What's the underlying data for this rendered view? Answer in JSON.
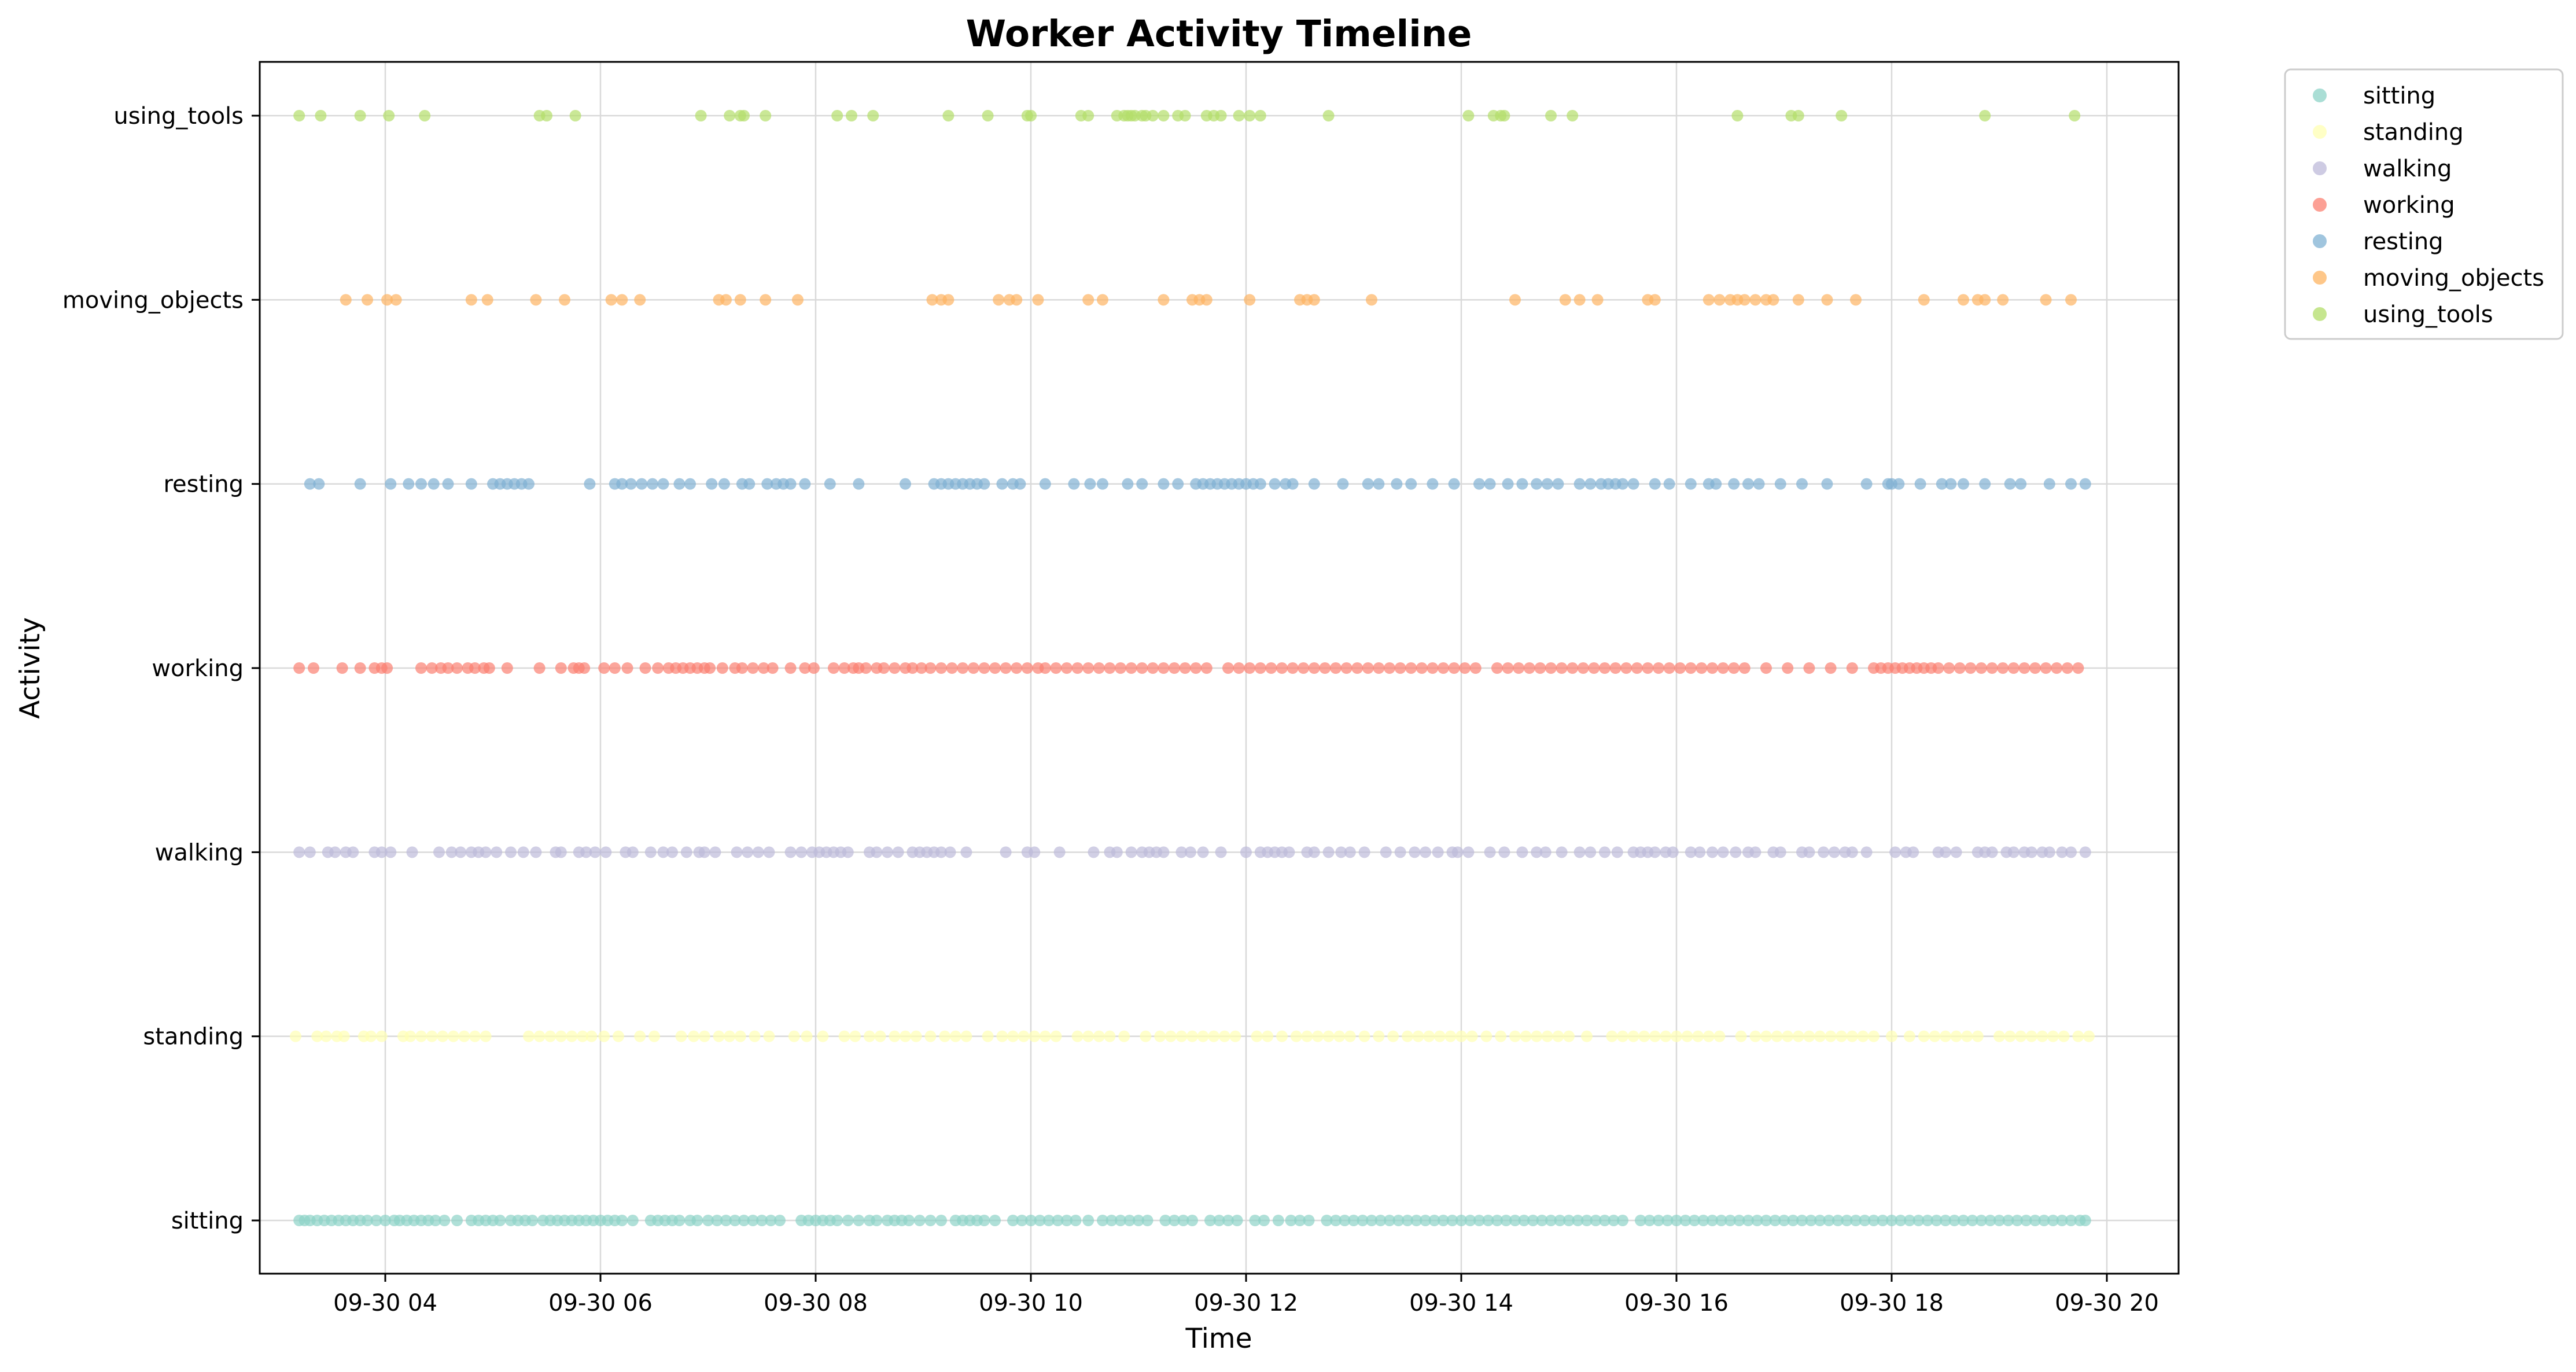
{
  "chart_data": {
    "type": "scatter",
    "title": "Worker Activity Timeline",
    "xlabel": "Time",
    "ylabel": "Activity",
    "x_unit": "datetime",
    "xlim": [
      "09-30 02:50",
      "09-30 20:40"
    ],
    "x_ticks": [
      "09-30 04:00",
      "09-30 06:00",
      "09-30 08:00",
      "09-30 10:00",
      "09-30 12:00",
      "09-30 14:00",
      "09-30 16:00",
      "09-30 18:00",
      "09-30 20:00"
    ],
    "x_tick_labels": [
      "09-30 04",
      "09-30 06",
      "09-30 08",
      "09-30 10",
      "09-30 12",
      "09-30 14",
      "09-30 16",
      "09-30 18",
      "09-30 20"
    ],
    "categories": [
      "sitting",
      "standing",
      "walking",
      "working",
      "resting",
      "moving_objects",
      "using_tools"
    ],
    "grid": true,
    "legend_position": "outside-top-right",
    "series": [
      {
        "name": "sitting",
        "color": "#8dd3c7",
        "x": [
          "03:12",
          "03:15",
          "03:18",
          "03:22",
          "03:26",
          "03:30",
          "03:34",
          "03:38",
          "03:42",
          "03:46",
          "03:50",
          "03:55",
          "04:00",
          "04:05",
          "04:08",
          "04:12",
          "04:16",
          "04:20",
          "04:24",
          "04:28",
          "04:33",
          "04:40",
          "04:48",
          "04:52",
          "04:56",
          "05:00",
          "05:04",
          "05:10",
          "05:14",
          "05:18",
          "05:22",
          "05:28",
          "05:32",
          "05:36",
          "05:40",
          "05:44",
          "05:48",
          "05:52",
          "05:56",
          "06:00",
          "06:04",
          "06:08",
          "06:12",
          "06:18",
          "06:28",
          "06:32",
          "06:36",
          "06:40",
          "06:44",
          "06:50",
          "06:54",
          "07:00",
          "07:05",
          "07:10",
          "07:15",
          "07:20",
          "07:25",
          "07:30",
          "07:35",
          "07:40",
          "07:52",
          "07:56",
          "08:00",
          "08:04",
          "08:08",
          "08:12",
          "08:18",
          "08:24",
          "08:30",
          "08:34",
          "08:40",
          "08:44",
          "08:48",
          "08:52",
          "08:58",
          "09:04",
          "09:10",
          "09:18",
          "09:22",
          "09:26",
          "09:30",
          "09:34",
          "09:40",
          "09:50",
          "09:55",
          "10:00",
          "10:05",
          "10:10",
          "10:15",
          "10:20",
          "10:25",
          "10:32",
          "10:40",
          "10:45",
          "10:50",
          "10:55",
          "11:00",
          "11:05",
          "11:15",
          "11:20",
          "11:25",
          "11:30",
          "11:40",
          "11:45",
          "11:50",
          "11:55",
          "12:05",
          "12:10",
          "12:18",
          "12:25",
          "12:30",
          "12:35",
          "12:45",
          "12:50",
          "12:55",
          "13:00",
          "13:05",
          "13:10",
          "13:15",
          "13:20",
          "13:25",
          "13:30",
          "13:35",
          "13:40",
          "13:45",
          "13:50",
          "13:55",
          "14:00",
          "14:05",
          "14:10",
          "14:15",
          "14:20",
          "14:25",
          "14:30",
          "14:35",
          "14:40",
          "14:45",
          "14:50",
          "14:55",
          "15:00",
          "15:05",
          "15:10",
          "15:15",
          "15:20",
          "15:25",
          "15:30",
          "15:40",
          "15:45",
          "15:50",
          "15:55",
          "16:00",
          "16:05",
          "16:10",
          "16:15",
          "16:20",
          "16:25",
          "16:30",
          "16:35",
          "16:40",
          "16:45",
          "16:50",
          "16:55",
          "17:00",
          "17:05",
          "17:10",
          "17:15",
          "17:20",
          "17:25",
          "17:30",
          "17:35",
          "17:40",
          "17:45",
          "17:50",
          "17:55",
          "18:00",
          "18:05",
          "18:10",
          "18:15",
          "18:20",
          "18:25",
          "18:30",
          "18:35",
          "18:40",
          "18:45",
          "18:50",
          "18:55",
          "19:00",
          "19:05",
          "19:10",
          "19:15",
          "19:20",
          "19:25",
          "19:30",
          "19:35",
          "19:40",
          "19:45",
          "19:48"
        ]
      },
      {
        "name": "standing",
        "color": "#ffffb3",
        "x": [
          "03:10",
          "03:22",
          "03:27",
          "03:33",
          "03:37",
          "03:48",
          "03:52",
          "03:58",
          "04:10",
          "04:14",
          "04:20",
          "04:26",
          "04:32",
          "04:38",
          "04:44",
          "04:50",
          "04:56",
          "05:20",
          "05:26",
          "05:32",
          "05:38",
          "05:44",
          "05:50",
          "05:55",
          "06:02",
          "06:10",
          "06:22",
          "06:30",
          "06:45",
          "06:52",
          "06:58",
          "07:06",
          "07:12",
          "07:18",
          "07:26",
          "07:34",
          "07:48",
          "07:55",
          "08:04",
          "08:16",
          "08:22",
          "08:30",
          "08:36",
          "08:44",
          "08:50",
          "08:56",
          "09:04",
          "09:12",
          "09:18",
          "09:24",
          "09:36",
          "09:44",
          "09:50",
          "09:56",
          "10:02",
          "10:08",
          "10:14",
          "10:26",
          "10:32",
          "10:38",
          "10:44",
          "10:52",
          "11:04",
          "11:12",
          "11:18",
          "11:24",
          "11:30",
          "11:36",
          "11:42",
          "11:48",
          "11:54",
          "12:06",
          "12:12",
          "12:20",
          "12:28",
          "12:34",
          "12:40",
          "12:46",
          "12:52",
          "12:58",
          "13:06",
          "13:14",
          "13:22",
          "13:30",
          "13:36",
          "13:42",
          "13:48",
          "13:54",
          "14:00",
          "14:06",
          "14:14",
          "14:22",
          "14:30",
          "14:36",
          "14:42",
          "14:48",
          "14:54",
          "15:00",
          "15:10",
          "15:24",
          "15:30",
          "15:36",
          "15:42",
          "15:48",
          "15:54",
          "16:00",
          "16:06",
          "16:12",
          "16:18",
          "16:24",
          "16:36",
          "16:44",
          "16:50",
          "16:56",
          "17:02",
          "17:08",
          "17:14",
          "17:20",
          "17:26",
          "17:32",
          "17:38",
          "17:44",
          "17:50",
          "18:00",
          "18:10",
          "18:18",
          "18:24",
          "18:30",
          "18:36",
          "18:42",
          "18:48",
          "19:00",
          "19:06",
          "19:12",
          "19:18",
          "19:24",
          "19:30",
          "19:36",
          "19:44",
          "19:50"
        ]
      },
      {
        "name": "walking",
        "color": "#bebada",
        "x": [
          "03:12",
          "03:18",
          "03:28",
          "03:32",
          "03:38",
          "03:42",
          "03:54",
          "03:58",
          "04:03",
          "04:15",
          "04:30",
          "04:37",
          "04:42",
          "04:48",
          "04:52",
          "04:56",
          "05:02",
          "05:10",
          "05:17",
          "05:24",
          "05:35",
          "05:38",
          "05:48",
          "05:52",
          "05:57",
          "06:03",
          "06:14",
          "06:18",
          "06:28",
          "06:35",
          "06:40",
          "06:48",
          "06:55",
          "06:58",
          "07:04",
          "07:16",
          "07:22",
          "07:28",
          "07:34",
          "07:46",
          "07:52",
          "07:58",
          "08:02",
          "08:06",
          "08:10",
          "08:14",
          "08:18",
          "08:30",
          "08:34",
          "08:40",
          "08:46",
          "08:54",
          "08:58",
          "09:02",
          "09:06",
          "09:10",
          "09:15",
          "09:24",
          "09:46",
          "09:58",
          "10:02",
          "10:16",
          "10:35",
          "10:44",
          "10:48",
          "10:56",
          "11:02",
          "11:06",
          "11:10",
          "11:14",
          "11:24",
          "11:29",
          "11:36",
          "11:46",
          "12:00",
          "12:08",
          "12:12",
          "12:16",
          "12:20",
          "12:24",
          "12:34",
          "12:38",
          "12:46",
          "12:53",
          "12:58",
          "13:06",
          "13:18",
          "13:26",
          "13:34",
          "13:40",
          "13:47",
          "13:55",
          "13:58",
          "14:04",
          "14:16",
          "14:24",
          "14:34",
          "14:42",
          "14:47",
          "14:56",
          "15:06",
          "15:12",
          "15:20",
          "15:27",
          "15:36",
          "15:40",
          "15:44",
          "15:48",
          "15:54",
          "15:58",
          "16:08",
          "16:13",
          "16:20",
          "16:26",
          "16:33",
          "16:40",
          "16:44",
          "16:54",
          "16:58",
          "17:10",
          "17:14",
          "17:22",
          "17:28",
          "17:34",
          "17:38",
          "17:46",
          "18:02",
          "18:08",
          "18:12",
          "18:26",
          "18:30",
          "18:36",
          "18:48",
          "18:52",
          "18:56",
          "19:04",
          "19:08",
          "19:14",
          "19:18",
          "19:24",
          "19:28",
          "19:35",
          "19:40",
          "19:48"
        ]
      },
      {
        "name": "working",
        "color": "#fb8072",
        "x": [
          "03:12",
          "03:20",
          "03:36",
          "03:46",
          "03:54",
          "03:58",
          "04:01",
          "04:20",
          "04:26",
          "04:31",
          "04:35",
          "04:40",
          "04:46",
          "04:50",
          "04:55",
          "04:58",
          "05:08",
          "05:26",
          "05:38",
          "05:45",
          "05:48",
          "05:51",
          "06:02",
          "06:08",
          "06:15",
          "06:25",
          "06:32",
          "06:38",
          "06:42",
          "06:46",
          "06:50",
          "06:54",
          "06:58",
          "07:01",
          "07:08",
          "07:15",
          "07:19",
          "07:25",
          "07:31",
          "07:36",
          "07:46",
          "07:54",
          "07:59",
          "08:10",
          "08:16",
          "08:21",
          "08:24",
          "08:28",
          "08:34",
          "08:38",
          "08:44",
          "08:50",
          "08:54",
          "08:59",
          "09:04",
          "09:10",
          "09:16",
          "09:22",
          "09:28",
          "09:34",
          "09:40",
          "09:46",
          "09:52",
          "09:58",
          "10:04",
          "10:08",
          "10:14",
          "10:20",
          "10:26",
          "10:32",
          "10:38",
          "10:44",
          "10:50",
          "10:56",
          "11:02",
          "11:08",
          "11:14",
          "11:20",
          "11:26",
          "11:32",
          "11:38",
          "11:50",
          "11:56",
          "12:02",
          "12:08",
          "12:14",
          "12:20",
          "12:26",
          "12:32",
          "12:38",
          "12:44",
          "12:50",
          "12:56",
          "13:02",
          "13:08",
          "13:14",
          "13:20",
          "13:26",
          "13:32",
          "13:38",
          "13:44",
          "13:50",
          "13:56",
          "14:02",
          "14:08",
          "14:20",
          "14:26",
          "14:32",
          "14:38",
          "14:44",
          "14:50",
          "14:56",
          "15:02",
          "15:08",
          "15:14",
          "15:20",
          "15:26",
          "15:32",
          "15:38",
          "15:44",
          "15:50",
          "15:56",
          "16:02",
          "16:08",
          "16:14",
          "16:20",
          "16:26",
          "16:32",
          "16:38",
          "16:50",
          "17:02",
          "17:14",
          "17:26",
          "17:38",
          "17:50",
          "17:54",
          "17:58",
          "18:02",
          "18:06",
          "18:10",
          "18:14",
          "18:18",
          "18:22",
          "18:26",
          "18:32",
          "18:38",
          "18:44",
          "18:50",
          "18:56",
          "19:02",
          "19:08",
          "19:14",
          "19:20",
          "19:26",
          "19:32",
          "19:38",
          "19:44"
        ]
      },
      {
        "name": "resting",
        "color": "#80b1d3",
        "x": [
          "03:18",
          "03:23",
          "03:46",
          "04:03",
          "04:13",
          "04:20",
          "04:27",
          "04:35",
          "04:48",
          "05:00",
          "05:04",
          "05:08",
          "05:12",
          "05:16",
          "05:20",
          "05:54",
          "06:08",
          "06:12",
          "06:17",
          "06:23",
          "06:29",
          "06:35",
          "06:44",
          "06:50",
          "07:02",
          "07:09",
          "07:19",
          "07:23",
          "07:33",
          "07:38",
          "07:42",
          "07:46",
          "07:54",
          "08:08",
          "08:24",
          "08:50",
          "09:06",
          "09:10",
          "09:14",
          "09:18",
          "09:22",
          "09:26",
          "09:30",
          "09:34",
          "09:44",
          "09:50",
          "09:54",
          "10:08",
          "10:24",
          "10:33",
          "10:40",
          "10:54",
          "11:02",
          "11:14",
          "11:22",
          "11:32",
          "11:36",
          "11:40",
          "11:44",
          "11:48",
          "11:52",
          "11:56",
          "12:00",
          "12:04",
          "12:08",
          "12:16",
          "12:22",
          "12:26",
          "12:38",
          "12:54",
          "13:08",
          "13:14",
          "13:24",
          "13:32",
          "13:44",
          "13:56",
          "14:10",
          "14:16",
          "14:26",
          "14:34",
          "14:42",
          "14:48",
          "14:54",
          "15:06",
          "15:12",
          "15:18",
          "15:22",
          "15:26",
          "15:30",
          "15:36",
          "15:48",
          "15:56",
          "16:08",
          "16:18",
          "16:22",
          "16:32",
          "16:40",
          "16:46",
          "16:58",
          "17:10",
          "17:24",
          "17:46",
          "17:58",
          "18:00",
          "18:04",
          "18:16",
          "18:28",
          "18:33",
          "18:40",
          "18:52",
          "19:06",
          "19:12",
          "19:28",
          "19:40",
          "19:48"
        ]
      },
      {
        "name": "moving_objects",
        "color": "#fdb462",
        "x": [
          "03:38",
          "03:50",
          "04:01",
          "04:06",
          "04:48",
          "04:57",
          "05:24",
          "05:40",
          "06:06",
          "06:12",
          "06:22",
          "07:06",
          "07:10",
          "07:18",
          "07:32",
          "07:50",
          "09:05",
          "09:10",
          "09:14",
          "09:42",
          "09:48",
          "09:52",
          "10:04",
          "10:32",
          "10:40",
          "11:14",
          "11:30",
          "11:34",
          "11:38",
          "12:02",
          "12:30",
          "12:34",
          "12:38",
          "13:10",
          "14:30",
          "14:58",
          "15:06",
          "15:16",
          "15:44",
          "15:48",
          "16:18",
          "16:24",
          "16:30",
          "16:34",
          "16:38",
          "16:44",
          "16:50",
          "16:54",
          "17:08",
          "17:24",
          "17:40",
          "18:18",
          "18:40",
          "18:48",
          "18:52",
          "19:02",
          "19:26",
          "19:40"
        ]
      },
      {
        "name": "using_tools",
        "color": "#b3de69",
        "x": [
          "03:12",
          "03:24",
          "03:46",
          "04:02",
          "04:22",
          "05:26",
          "05:30",
          "05:46",
          "06:56",
          "07:12",
          "07:18",
          "07:20",
          "07:32",
          "08:12",
          "08:20",
          "08:32",
          "09:14",
          "09:36",
          "09:58",
          "10:00",
          "10:28",
          "10:32",
          "10:48",
          "10:52",
          "10:54",
          "10:56",
          "10:58",
          "11:02",
          "11:04",
          "11:08",
          "11:14",
          "11:22",
          "11:26",
          "11:38",
          "11:42",
          "11:46",
          "11:56",
          "12:02",
          "12:08",
          "12:46",
          "14:04",
          "14:18",
          "14:22",
          "14:24",
          "14:50",
          "15:02",
          "16:34",
          "17:04",
          "17:08",
          "17:32",
          "18:52",
          "19:42"
        ]
      }
    ]
  }
}
